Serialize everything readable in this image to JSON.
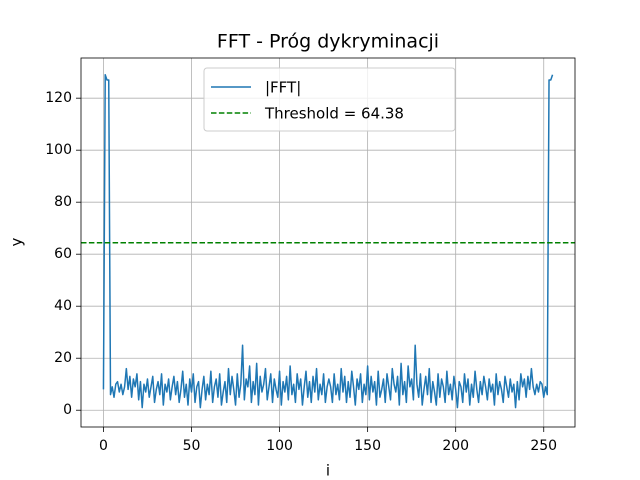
{
  "chart_data": {
    "type": "line",
    "title": "FFT - Próg dykryminacji",
    "xlabel": "i",
    "ylabel": "y",
    "series": [
      {
        "name": "|FFT|",
        "color": "#1f77b4",
        "values": [
          8,
          129,
          127,
          127,
          6,
          9,
          5,
          10,
          11,
          7,
          10,
          6,
          9,
          16,
          8,
          13,
          5,
          12,
          9,
          14,
          4,
          11,
          1,
          10,
          7,
          12,
          5,
          9,
          13,
          3,
          8,
          11,
          6,
          14,
          2,
          10,
          7,
          12,
          4,
          9,
          13,
          6,
          11,
          3,
          8,
          15,
          5,
          10,
          2,
          12,
          7,
          14,
          3,
          9,
          11,
          1,
          8,
          13,
          4,
          10,
          6,
          15,
          3,
          9,
          12,
          5,
          14,
          2,
          7,
          11,
          3,
          16,
          6,
          13,
          8,
          2,
          14,
          5,
          10,
          25,
          4,
          12,
          9,
          17,
          3,
          11,
          6,
          18,
          2,
          13,
          7,
          10,
          16,
          4,
          9,
          14,
          3,
          12,
          8,
          5,
          15,
          2,
          11,
          7,
          13,
          4,
          17,
          6,
          10,
          3,
          14,
          8,
          12,
          2,
          9,
          15,
          5,
          11,
          3,
          13,
          7,
          16,
          4,
          10,
          6,
          14,
          3,
          9,
          12,
          9,
          3,
          14,
          6,
          10,
          4,
          16,
          7,
          13,
          3,
          11,
          5,
          15,
          9,
          2,
          12,
          8,
          14,
          3,
          10,
          6,
          17,
          4,
          13,
          7,
          11,
          2,
          15,
          5,
          8,
          12,
          3,
          14,
          9,
          4,
          16,
          10,
          7,
          13,
          2,
          18,
          6,
          11,
          3,
          17,
          9,
          12,
          4,
          25,
          10,
          5,
          14,
          2,
          8,
          13,
          6,
          16,
          3,
          11,
          7,
          2,
          14,
          5,
          12,
          9,
          3,
          15,
          6,
          10,
          4,
          13,
          8,
          1,
          11,
          9,
          3,
          14,
          7,
          12,
          2,
          10,
          5,
          15,
          8,
          3,
          11,
          6,
          13,
          9,
          4,
          12,
          7,
          10,
          2,
          14,
          6,
          11,
          8,
          3,
          13,
          9,
          5,
          12,
          7,
          10,
          1,
          11,
          4,
          14,
          9,
          12,
          5,
          13,
          8,
          16,
          9,
          6,
          10,
          7,
          11,
          10,
          5,
          9,
          6,
          127,
          127,
          129
        ]
      }
    ],
    "threshold": {
      "name": "Threshold = 64.38",
      "value": 64.38,
      "color": "green",
      "style": "dashed"
    },
    "xlim": [
      -12.75,
      267.75
    ],
    "xticks": [
      0,
      50,
      100,
      150,
      200,
      250
    ],
    "ylim": [
      -6.45,
      135.45
    ],
    "yticks": [
      0,
      20,
      40,
      60,
      80,
      100,
      120
    ],
    "grid": true,
    "legend": "upper center"
  }
}
